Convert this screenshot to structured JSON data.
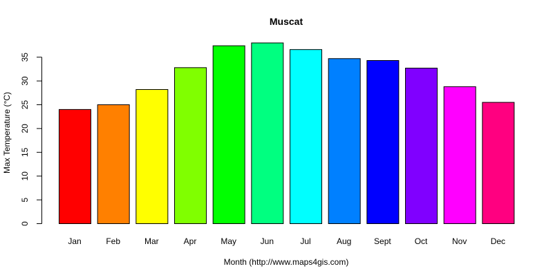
{
  "chart_data": {
    "type": "bar",
    "title": "Muscat",
    "xlabel": "Month (http://www.maps4gis.com)",
    "ylabel": "Max Temperature (°C)",
    "categories": [
      "Jan",
      "Feb",
      "Mar",
      "Apr",
      "May",
      "Jun",
      "Jul",
      "Aug",
      "Sept",
      "Oct",
      "Nov",
      "Dec"
    ],
    "values": [
      24.0,
      25.0,
      28.2,
      32.8,
      37.4,
      38.0,
      36.6,
      34.7,
      34.3,
      32.7,
      28.8,
      25.5
    ],
    "colors": [
      "#FF0000",
      "#FF8000",
      "#FFFF00",
      "#80FF00",
      "#00FF00",
      "#00FF80",
      "#00FFFF",
      "#0080FF",
      "#0000FF",
      "#8000FF",
      "#FF00FF",
      "#FF0080"
    ],
    "yticks": [
      0,
      5,
      10,
      15,
      20,
      25,
      30,
      35
    ],
    "ylim": [
      0,
      38
    ],
    "grid": false
  }
}
